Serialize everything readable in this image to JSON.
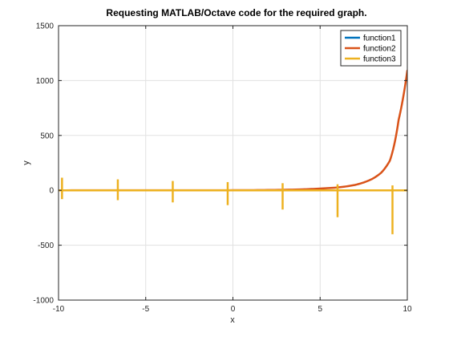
{
  "chart_data": {
    "type": "line",
    "title": "Requesting MATLAB/Octave code for the required graph.",
    "xlabel": "x",
    "ylabel": "y",
    "xlim": [
      -10,
      10
    ],
    "ylim": [
      -1000,
      1500
    ],
    "xticks": [
      -10,
      -5,
      0,
      5,
      10
    ],
    "yticks": [
      -1000,
      -500,
      0,
      500,
      1000,
      1500
    ],
    "grid": true,
    "legend_position": "top-right",
    "series": [
      {
        "name": "function1",
        "color": "#0072bd",
        "description": "near-zero flat line",
        "x": [
          -10,
          -5,
          0,
          5,
          10
        ],
        "y": [
          0,
          0,
          0,
          0,
          0
        ]
      },
      {
        "name": "function2",
        "color": "#d95319",
        "description": "exponential growth",
        "x": [
          -10,
          -6,
          -2,
          0,
          2,
          4,
          5,
          6,
          7,
          8,
          8.5,
          9,
          9.5,
          10
        ],
        "y": [
          0.1,
          0.2,
          0.5,
          1,
          2.9,
          9,
          16,
          26,
          49,
          105,
          160,
          270,
          640,
          1090
        ]
      },
      {
        "name": "function3",
        "color": "#edb120",
        "description": "tan-like spikes near zero with vertical excursions",
        "spikes": [
          {
            "x": -9.8,
            "top": 115,
            "bottom": -80
          },
          {
            "x": -6.6,
            "top": 100,
            "bottom": -90
          },
          {
            "x": -3.45,
            "top": 85,
            "bottom": -110
          },
          {
            "x": -0.3,
            "top": 75,
            "bottom": -135
          },
          {
            "x": 2.85,
            "top": 65,
            "bottom": -175
          },
          {
            "x": 6.0,
            "top": 55,
            "bottom": -245
          },
          {
            "x": 9.15,
            "top": 45,
            "bottom": -400
          }
        ]
      }
    ]
  }
}
